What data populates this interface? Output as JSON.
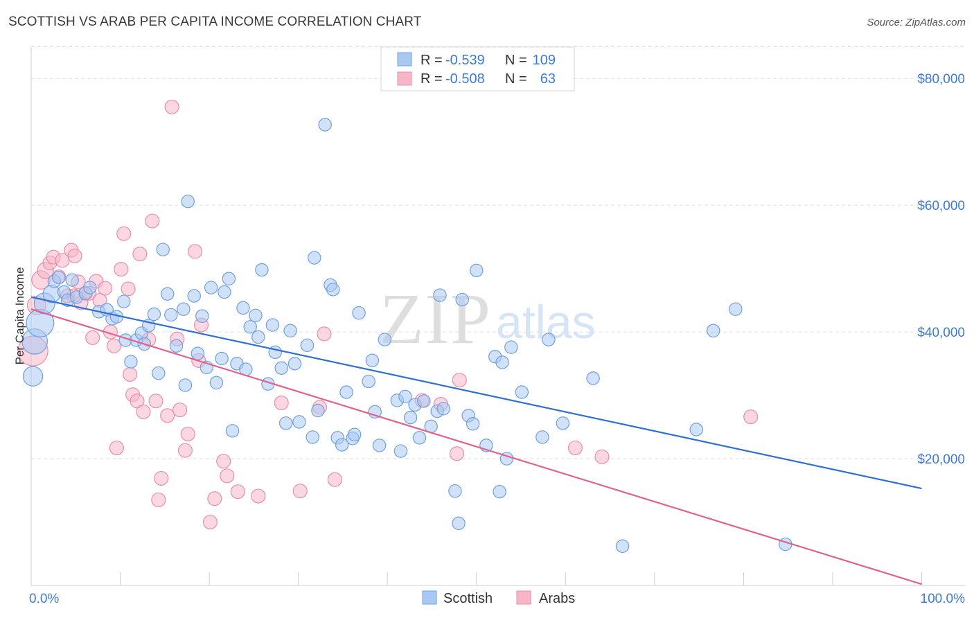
{
  "header": {
    "title": "SCOTTISH VS ARAB PER CAPITA INCOME CORRELATION CHART",
    "source": "Source: ZipAtlas.com"
  },
  "watermark": {
    "zip": "ZIP",
    "atlas": "atlas"
  },
  "colors": {
    "scottish_fill": "#a9c9f2",
    "scottish_stroke": "#6fa0e0",
    "scottish_line": "#2f6fd0",
    "arabs_fill": "#f6b6c8",
    "arabs_stroke": "#ea8eaa",
    "arabs_line": "#e0628e",
    "axis_text": "#3d7bd6",
    "grid": "#dddddd"
  },
  "legend_top": {
    "rows": [
      {
        "r_label": "R =",
        "r_value": "-0.539",
        "n_label": "N =",
        "n_value": "109"
      },
      {
        "r_label": "R =",
        "r_value": "-0.508",
        "n_label": "N =",
        "n_value": "63"
      }
    ]
  },
  "chart_data": {
    "type": "scatter",
    "title": "SCOTTISH VS ARAB PER CAPITA INCOME CORRELATION CHART",
    "xlabel": "",
    "ylabel": "Per Capita Income",
    "xlim": [
      0,
      100
    ],
    "ylim": [
      0,
      85000
    ],
    "x_tick_labels": [
      "0.0%",
      "100.0%"
    ],
    "y_ticks": [
      20000,
      40000,
      60000,
      80000
    ],
    "y_tick_labels": [
      "$20,000",
      "$40,000",
      "$60,000",
      "$80,000"
    ],
    "grid": true,
    "legend_position": "bottom-center",
    "series": [
      {
        "name": "Scottish",
        "R": -0.539,
        "N": 109,
        "trend": {
          "x": [
            0,
            100
          ],
          "y": [
            45500,
            15300
          ]
        },
        "points": [
          [
            0.2,
            33000,
            1.7
          ],
          [
            0.4,
            38500,
            2.2
          ],
          [
            1.0,
            41400,
            2.4
          ],
          [
            1.5,
            44500,
            1.8
          ],
          [
            2.3,
            46000,
            1.5
          ],
          [
            2.6,
            48000,
            1.1
          ],
          [
            3.1,
            48600,
            1.1
          ],
          [
            3.7,
            46300,
            1.1
          ],
          [
            4.1,
            45000,
            1.1
          ],
          [
            4.6,
            48200,
            1.1
          ],
          [
            5.1,
            45500,
            1.1
          ],
          [
            6.1,
            46100,
            1.1
          ],
          [
            6.6,
            47000,
            1.1
          ],
          [
            7.6,
            43200,
            1.1
          ],
          [
            8.5,
            43500,
            1.1
          ],
          [
            9.1,
            42100,
            1.1
          ],
          [
            9.6,
            42400,
            1.1
          ],
          [
            10.4,
            44800,
            1.1
          ],
          [
            10.6,
            38700,
            1.1
          ],
          [
            11.2,
            35300,
            1.1
          ],
          [
            11.8,
            38700,
            1.1
          ],
          [
            12.4,
            39800,
            1.1
          ],
          [
            12.7,
            38100,
            1.1
          ],
          [
            13.2,
            41000,
            1.1
          ],
          [
            13.8,
            42800,
            1.1
          ],
          [
            14.3,
            33500,
            1.1
          ],
          [
            14.8,
            53000,
            1.1
          ],
          [
            15.3,
            46000,
            1.1
          ],
          [
            15.7,
            42700,
            1.1
          ],
          [
            16.3,
            37800,
            1.1
          ],
          [
            17.1,
            43600,
            1.1
          ],
          [
            17.3,
            31600,
            1.1
          ],
          [
            17.6,
            60600,
            1.1
          ],
          [
            18.3,
            45700,
            1.1
          ],
          [
            18.7,
            36600,
            1.1
          ],
          [
            19.2,
            42500,
            1.1
          ],
          [
            19.7,
            34400,
            1.1
          ],
          [
            20.2,
            47000,
            1.1
          ],
          [
            20.8,
            32000,
            1.1
          ],
          [
            21.4,
            35800,
            1.1
          ],
          [
            21.7,
            46300,
            1.1
          ],
          [
            22.2,
            48400,
            1.1
          ],
          [
            22.6,
            24400,
            1.1
          ],
          [
            23.1,
            35000,
            1.1
          ],
          [
            23.8,
            43800,
            1.1
          ],
          [
            24.1,
            34100,
            1.1
          ],
          [
            24.6,
            40800,
            1.1
          ],
          [
            25.2,
            42600,
            1.1
          ],
          [
            25.5,
            39200,
            1.1
          ],
          [
            25.9,
            49800,
            1.1
          ],
          [
            26.6,
            31800,
            1.1
          ],
          [
            27.1,
            41100,
            1.1
          ],
          [
            27.4,
            36800,
            1.1
          ],
          [
            28.1,
            34300,
            1.1
          ],
          [
            28.6,
            25600,
            1.1
          ],
          [
            29.1,
            40200,
            1.1
          ],
          [
            29.6,
            35000,
            1.1
          ],
          [
            30.1,
            25800,
            1.1
          ],
          [
            31.0,
            37900,
            1.1
          ],
          [
            31.6,
            23400,
            1.1
          ],
          [
            31.8,
            51700,
            1.1
          ],
          [
            32.2,
            27600,
            1.1
          ],
          [
            33.0,
            72700,
            1.1
          ],
          [
            33.6,
            47400,
            1.1
          ],
          [
            33.9,
            46700,
            1.1
          ],
          [
            34.4,
            23300,
            1.1
          ],
          [
            34.9,
            22200,
            1.1
          ],
          [
            35.4,
            30500,
            1.1
          ],
          [
            36.1,
            23200,
            1.1
          ],
          [
            36.3,
            23800,
            1.1
          ],
          [
            36.8,
            43000,
            1.1
          ],
          [
            37.9,
            32200,
            1.1
          ],
          [
            38.3,
            35500,
            1.1
          ],
          [
            38.6,
            27400,
            1.1
          ],
          [
            39.1,
            22100,
            1.1
          ],
          [
            39.7,
            38800,
            1.1
          ],
          [
            41.1,
            29200,
            1.1
          ],
          [
            41.5,
            21200,
            1.1
          ],
          [
            42.0,
            29800,
            1.1
          ],
          [
            42.6,
            26500,
            1.1
          ],
          [
            43.1,
            28500,
            1.1
          ],
          [
            43.6,
            23300,
            1.1
          ],
          [
            44.1,
            29100,
            1.1
          ],
          [
            44.9,
            25100,
            1.1
          ],
          [
            45.6,
            27500,
            1.1
          ],
          [
            45.9,
            45800,
            1.1
          ],
          [
            46.3,
            27900,
            1.1
          ],
          [
            47.6,
            14900,
            1.1
          ],
          [
            48.0,
            9800,
            1.1
          ],
          [
            48.4,
            45100,
            1.1
          ],
          [
            49.1,
            26800,
            1.1
          ],
          [
            49.6,
            25500,
            1.1
          ],
          [
            50.0,
            49700,
            1.1
          ],
          [
            51.1,
            22100,
            1.1
          ],
          [
            52.1,
            36100,
            1.1
          ],
          [
            52.6,
            14800,
            1.1
          ],
          [
            52.9,
            35200,
            1.1
          ],
          [
            53.9,
            37600,
            1.1
          ],
          [
            55.1,
            30500,
            1.1
          ],
          [
            57.4,
            23400,
            1.1
          ],
          [
            58.1,
            38800,
            1.1
          ],
          [
            59.7,
            25600,
            1.1
          ],
          [
            63.1,
            32700,
            1.1
          ],
          [
            66.4,
            6200,
            1.1
          ],
          [
            74.7,
            24600,
            1.1
          ],
          [
            76.6,
            40200,
            1.1
          ],
          [
            79.1,
            43600,
            1.1
          ],
          [
            84.7,
            6500,
            1.1
          ],
          [
            53.4,
            20000,
            1.1
          ]
        ]
      },
      {
        "name": "Arabs",
        "R": -0.508,
        "N": 63,
        "trend": {
          "x": [
            0,
            100
          ],
          "y": [
            43600,
            200
          ]
        },
        "points": [
          [
            0.2,
            37000,
            2.6
          ],
          [
            0.6,
            44200,
            1.6
          ],
          [
            1.1,
            48200,
            1.6
          ],
          [
            1.6,
            49700,
            1.4
          ],
          [
            2.1,
            50900,
            1.2
          ],
          [
            2.5,
            51800,
            1.2
          ],
          [
            3.1,
            48700,
            1.2
          ],
          [
            3.5,
            51300,
            1.2
          ],
          [
            4.1,
            45700,
            1.2
          ],
          [
            4.5,
            52900,
            1.2
          ],
          [
            4.9,
            52000,
            1.2
          ],
          [
            5.3,
            47900,
            1.2
          ],
          [
            5.6,
            44600,
            1.2
          ],
          [
            6.1,
            46100,
            1.2
          ],
          [
            6.5,
            46100,
            1.2
          ],
          [
            6.9,
            39100,
            1.2
          ],
          [
            7.3,
            48000,
            1.2
          ],
          [
            7.7,
            45000,
            1.2
          ],
          [
            8.3,
            46900,
            1.2
          ],
          [
            8.9,
            40000,
            1.2
          ],
          [
            9.3,
            37800,
            1.2
          ],
          [
            9.6,
            21700,
            1.2
          ],
          [
            10.1,
            49900,
            1.2
          ],
          [
            10.4,
            55500,
            1.2
          ],
          [
            10.9,
            46800,
            1.2
          ],
          [
            11.1,
            33300,
            1.2
          ],
          [
            11.4,
            30100,
            1.2
          ],
          [
            11.9,
            29100,
            1.2
          ],
          [
            12.2,
            52300,
            1.2
          ],
          [
            12.6,
            27400,
            1.2
          ],
          [
            13.2,
            38800,
            1.2
          ],
          [
            13.6,
            57500,
            1.2
          ],
          [
            14.0,
            29100,
            1.2
          ],
          [
            14.3,
            13500,
            1.2
          ],
          [
            14.6,
            16900,
            1.2
          ],
          [
            15.3,
            26800,
            1.2
          ],
          [
            15.8,
            75500,
            1.2
          ],
          [
            16.4,
            38900,
            1.2
          ],
          [
            16.7,
            27700,
            1.2
          ],
          [
            17.3,
            21300,
            1.2
          ],
          [
            17.6,
            23900,
            1.2
          ],
          [
            18.4,
            52700,
            1.2
          ],
          [
            18.8,
            35500,
            1.2
          ],
          [
            19.1,
            41100,
            1.2
          ],
          [
            20.1,
            10000,
            1.2
          ],
          [
            20.6,
            13700,
            1.2
          ],
          [
            21.6,
            19600,
            1.2
          ],
          [
            22.0,
            17300,
            1.2
          ],
          [
            23.2,
            14800,
            1.2
          ],
          [
            25.5,
            14100,
            1.2
          ],
          [
            28.1,
            28800,
            1.2
          ],
          [
            30.2,
            14900,
            1.2
          ],
          [
            32.4,
            28100,
            1.2
          ],
          [
            32.9,
            39700,
            1.2
          ],
          [
            34.1,
            16700,
            1.2
          ],
          [
            43.9,
            29200,
            1.2
          ],
          [
            46.0,
            28600,
            1.2
          ],
          [
            47.8,
            20800,
            1.2
          ],
          [
            48.1,
            32400,
            1.2
          ],
          [
            61.1,
            21700,
            1.2
          ],
          [
            64.1,
            20300,
            1.2
          ],
          [
            80.8,
            26600,
            1.2
          ],
          [
            4.8,
            45700,
            1.2
          ]
        ]
      }
    ]
  },
  "legend_bottom": {
    "items": [
      "Scottish",
      "Arabs"
    ]
  }
}
